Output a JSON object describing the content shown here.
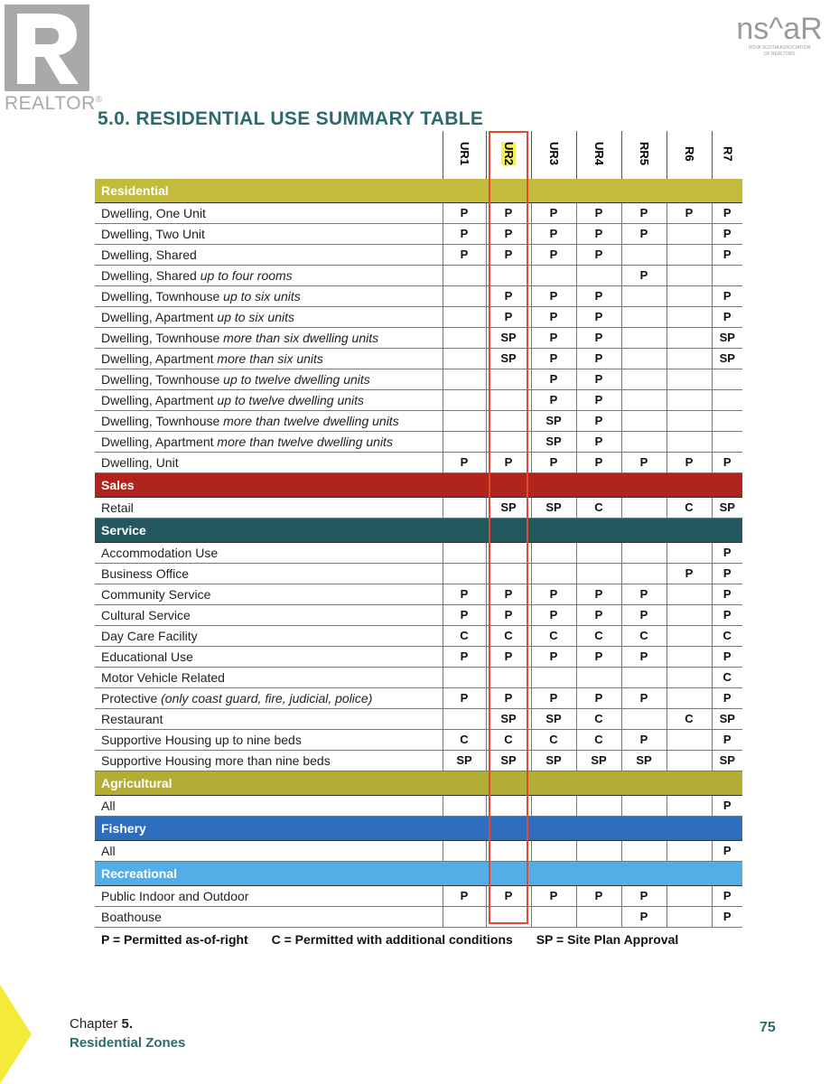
{
  "logos": {
    "realtor": "REALTOR",
    "nsar": "nsar",
    "nsar_sub": "NOVA SCOTIA ASSOCIATION OF REALTORS"
  },
  "title": "5.0.   RESIDENTIAL USE SUMMARY TABLE",
  "columns": [
    "UR1",
    "UR2",
    "UR3",
    "UR4",
    "RR5",
    "R6",
    "R7"
  ],
  "highlighted_column": "UR2",
  "colors": {
    "residential": "#c2bb3c",
    "sales": "#b0241c",
    "service": "#22585e",
    "agricultural": "#b2ad34",
    "fishery": "#2f6dbf",
    "recreational": "#55ade6",
    "highlight_box": "#e04a35",
    "title": "#2c6a70"
  },
  "sections": [
    {
      "name": "Residential",
      "color_key": "residential",
      "rows": [
        {
          "label": "Dwelling, One Unit",
          "italic": "",
          "values": [
            "P",
            "P",
            "P",
            "P",
            "P",
            "P",
            "P"
          ]
        },
        {
          "label": "Dwelling, Two Unit",
          "italic": "",
          "values": [
            "P",
            "P",
            "P",
            "P",
            "P",
            "",
            "P"
          ]
        },
        {
          "label": "Dwelling, Shared",
          "italic": "",
          "values": [
            "P",
            "P",
            "P",
            "P",
            "",
            "",
            "P"
          ]
        },
        {
          "label": "Dwelling, Shared ",
          "italic": "up to four rooms",
          "values": [
            "",
            "",
            "",
            "",
            "P",
            "",
            ""
          ]
        },
        {
          "label": "Dwelling, Townhouse ",
          "italic": "up to six units",
          "values": [
            "",
            "P",
            "P",
            "P",
            "",
            "",
            "P"
          ]
        },
        {
          "label": "Dwelling, Apartment ",
          "italic": "up to six units",
          "values": [
            "",
            "P",
            "P",
            "P",
            "",
            "",
            "P"
          ]
        },
        {
          "label": "Dwelling, Townhouse ",
          "italic": "more than six dwelling units",
          "values": [
            "",
            "SP",
            "P",
            "P",
            "",
            "",
            "SP"
          ]
        },
        {
          "label": "Dwelling, Apartment ",
          "italic": "more than six units",
          "values": [
            "",
            "SP",
            "P",
            "P",
            "",
            "",
            "SP"
          ]
        },
        {
          "label": "Dwelling, Townhouse ",
          "italic": "up to twelve dwelling units",
          "values": [
            "",
            "",
            "P",
            "P",
            "",
            "",
            ""
          ]
        },
        {
          "label": "Dwelling, Apartment ",
          "italic": "up to twelve dwelling units",
          "values": [
            "",
            "",
            "P",
            "P",
            "",
            "",
            ""
          ]
        },
        {
          "label": "Dwelling, Townhouse ",
          "italic": "more than twelve dwelling units",
          "values": [
            "",
            "",
            "SP",
            "P",
            "",
            "",
            ""
          ]
        },
        {
          "label": "Dwelling, Apartment ",
          "italic": "more than twelve dwelling units",
          "values": [
            "",
            "",
            "SP",
            "P",
            "",
            "",
            ""
          ]
        },
        {
          "label": "Dwelling, Unit",
          "italic": "",
          "values": [
            "P",
            "P",
            "P",
            "P",
            "P",
            "P",
            "P"
          ]
        }
      ]
    },
    {
      "name": "Sales",
      "color_key": "sales",
      "rows": [
        {
          "label": "Retail",
          "italic": "",
          "values": [
            "",
            "SP",
            "SP",
            "C",
            "",
            "C",
            "SP"
          ]
        }
      ]
    },
    {
      "name": "Service",
      "color_key": "service",
      "rows": [
        {
          "label": "Accommodation Use",
          "italic": "",
          "values": [
            "",
            "",
            "",
            "",
            "",
            "",
            "P"
          ]
        },
        {
          "label": "Business Office",
          "italic": "",
          "values": [
            "",
            "",
            "",
            "",
            "",
            "P",
            "P"
          ]
        },
        {
          "label": "Community Service",
          "italic": "",
          "values": [
            "P",
            "P",
            "P",
            "P",
            "P",
            "",
            "P"
          ]
        },
        {
          "label": "Cultural Service",
          "italic": "",
          "values": [
            "P",
            "P",
            "P",
            "P",
            "P",
            "",
            "P"
          ]
        },
        {
          "label": "Day Care Facility",
          "italic": "",
          "values": [
            "C",
            "C",
            "C",
            "C",
            "C",
            "",
            "C"
          ]
        },
        {
          "label": "Educational Use",
          "italic": "",
          "values": [
            "P",
            "P",
            "P",
            "P",
            "P",
            "",
            "P"
          ]
        },
        {
          "label": "Motor Vehicle Related",
          "italic": "",
          "values": [
            "",
            "",
            "",
            "",
            "",
            "",
            "C"
          ]
        },
        {
          "label": "Protective ",
          "italic": "(only coast guard, fire, judicial, police)",
          "values": [
            "P",
            "P",
            "P",
            "P",
            "P",
            "",
            "P"
          ]
        },
        {
          "label": "Restaurant",
          "italic": "",
          "values": [
            "",
            "SP",
            "SP",
            "C",
            "",
            "C",
            "SP"
          ]
        },
        {
          "label": "Supportive Housing up to nine beds",
          "italic": "",
          "values": [
            "C",
            "C",
            "C",
            "C",
            "P",
            "",
            "P"
          ]
        },
        {
          "label": "Supportive Housing more than nine beds",
          "italic": "",
          "values": [
            "SP",
            "SP",
            "SP",
            "SP",
            "SP",
            "",
            "SP"
          ]
        }
      ]
    },
    {
      "name": "Agricultural",
      "color_key": "agricultural",
      "rows": [
        {
          "label": "All",
          "italic": "",
          "values": [
            "",
            "",
            "",
            "",
            "",
            "",
            "P"
          ]
        }
      ]
    },
    {
      "name": "Fishery",
      "color_key": "fishery",
      "rows": [
        {
          "label": "All",
          "italic": "",
          "values": [
            "",
            "",
            "",
            "",
            "",
            "",
            "P"
          ]
        }
      ]
    },
    {
      "name": "Recreational",
      "color_key": "recreational",
      "rows": [
        {
          "label": "Public Indoor and Outdoor",
          "italic": "",
          "values": [
            "P",
            "P",
            "P",
            "P",
            "P",
            "",
            "P"
          ]
        },
        {
          "label": "Boathouse",
          "italic": "",
          "values": [
            "",
            "",
            "",
            "",
            "P",
            "",
            "P"
          ]
        }
      ]
    }
  ],
  "legend": [
    "P = Permitted as-of-right",
    "C = Permitted with additional conditions",
    "SP = Site Plan Approval"
  ],
  "footer": {
    "chapter_label": "Chapter ",
    "chapter_num": "5.",
    "chapter_title": "Residential Zones",
    "page": "75"
  }
}
